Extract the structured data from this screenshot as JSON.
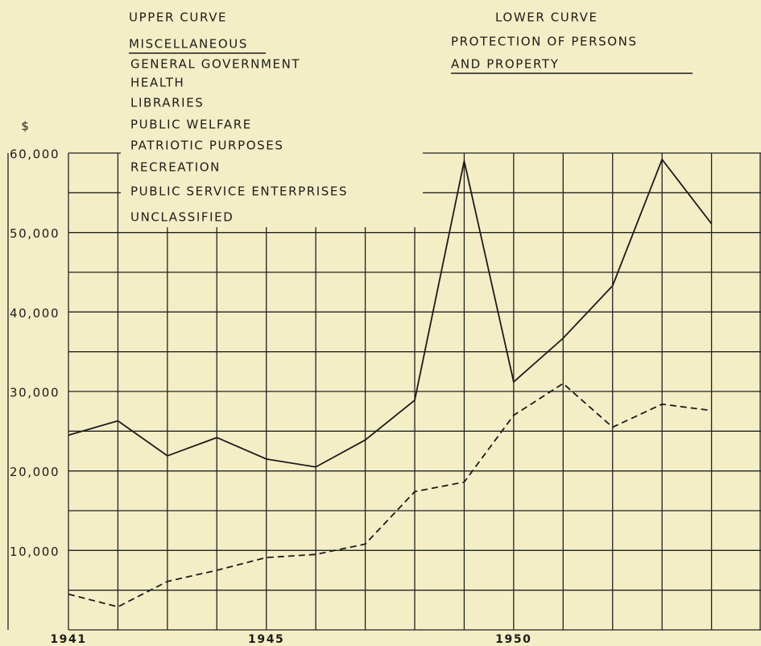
{
  "chart_data": {
    "type": "line",
    "unit_label": "$",
    "x": [
      1941,
      1942,
      1943,
      1944,
      1945,
      1946,
      1947,
      1948,
      1949,
      1950,
      1951,
      1952,
      1953,
      1954
    ],
    "xlim": [
      1941,
      1955
    ],
    "xticks": [
      1941,
      1945,
      1950
    ],
    "ylim": [
      0,
      60000
    ],
    "yticks": [
      {
        "value": 10000,
        "label": "10,000"
      },
      {
        "value": 20000,
        "label": "20,000"
      },
      {
        "value": 30000,
        "label": "30,000"
      },
      {
        "value": 40000,
        "label": "40,000"
      },
      {
        "value": 50000,
        "label": "50,000"
      },
      {
        "value": 60000,
        "label": "60,000"
      }
    ],
    "minor_yticks": [
      0,
      5000,
      15000,
      25000,
      35000,
      45000,
      55000
    ],
    "grid": true,
    "series": [
      {
        "name": "UPPER CURVE",
        "color": "#1c1c1c",
        "line_style": "solid",
        "title": "MISCELLANEOUS",
        "items": [
          "GENERAL GOVERNMENT",
          "HEALTH",
          "LIBRARIES",
          "PUBLIC WELFARE",
          "PATRIOTIC PURPOSES",
          "RECREATION",
          "PUBLIC SERVICE ENTERPRISES",
          "UNCLASSIFIED"
        ],
        "values": [
          24500,
          26300,
          21900,
          24200,
          21500,
          20500,
          23900,
          28900,
          59000,
          31200,
          36700,
          43300,
          59200,
          51100
        ]
      },
      {
        "name": "LOWER CURVE",
        "color": "#1c1c1c",
        "line_style": "dashed",
        "title": [
          "PROTECTION OF PERSONS",
          "AND PROPERTY"
        ],
        "values": [
          4500,
          2900,
          6100,
          7500,
          9100,
          9500,
          10800,
          17400,
          18600,
          27000,
          31000,
          25500,
          28400,
          27600
        ]
      }
    ]
  }
}
